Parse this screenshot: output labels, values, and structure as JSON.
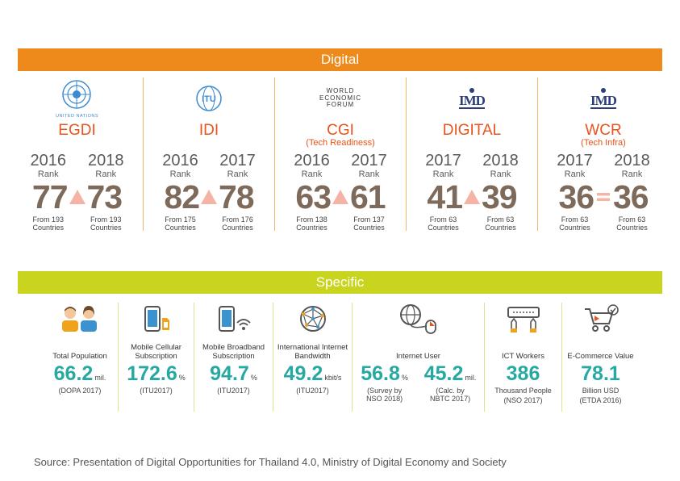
{
  "digital_header": "Digital",
  "specific_header": "Specific",
  "digital": [
    {
      "logo": "UNITED NATIONS",
      "title": "EGDI",
      "subtitle": "",
      "y1": "2016",
      "y2": "2018",
      "v1": "77",
      "v2": "73",
      "f1": "From 193 Countries",
      "f2": "From 193 Countries",
      "trend": "up"
    },
    {
      "logo": "ITU",
      "title": "IDI",
      "subtitle": "",
      "y1": "2016",
      "y2": "2017",
      "v1": "82",
      "v2": "78",
      "f1": "From 175 Countries",
      "f2": "From 176 Countries",
      "trend": "up"
    },
    {
      "logo": "WORLD ECONOMIC FORUM",
      "title": "CGI",
      "subtitle": "(Tech Readiness)",
      "y1": "2016",
      "y2": "2017",
      "v1": "63",
      "v2": "61",
      "f1": "From 138 Countries",
      "f2": "From 137 Countries",
      "trend": "up"
    },
    {
      "logo": "IMD",
      "title": "DIGITAL",
      "subtitle": "",
      "y1": "2017",
      "y2": "2018",
      "v1": "41",
      "v2": "39",
      "f1": "From 63 Countries",
      "f2": "From 63 Countries",
      "trend": "up"
    },
    {
      "logo": "IMD",
      "title": "WCR",
      "subtitle": "(Tech Infra)",
      "y1": "2017",
      "y2": "2018",
      "v1": "36",
      "v2": "36",
      "f1": "From 63 Countries",
      "f2": "From 63 Countries",
      "trend": "equal"
    }
  ],
  "rank_label": "Rank",
  "specific": {
    "population": {
      "label": "Total Population",
      "value": "66.2",
      "unit": "mil.",
      "note": "(DOPA 2017)"
    },
    "mobile": {
      "label": "Mobile Cellular Subscription",
      "value": "172.6",
      "unit": "%",
      "note": "(ITU2017)"
    },
    "broadband": {
      "label": "Mobile Broadband Subscription",
      "value": "94.7",
      "unit": "%",
      "note": "(ITU2017)"
    },
    "bandwidth": {
      "label": "International Internet Bandwidth",
      "value": "49.2",
      "unit": "kbit/s",
      "note": "(ITU2017)"
    },
    "internet": {
      "label": "Internet User",
      "value1": "56.8",
      "unit1": "%",
      "note1": "(Survey by NSO 2018)",
      "value2": "45.2",
      "unit2": "mil.",
      "note2": "(Calc. by NBTC 2017)"
    },
    "ict": {
      "label": "ICT Workers",
      "value": "386",
      "unit_line": "Thousand People",
      "note": "(NSO 2017)"
    },
    "ecommerce": {
      "label": "E-Commerce Value",
      "value": "78.1",
      "unit_line": "Billion USD",
      "note": "(ETDA 2016)"
    }
  },
  "source": "Source: Presentation of Digital Opportunities for Thailand 4.0, Ministry of Digital Economy and Society"
}
